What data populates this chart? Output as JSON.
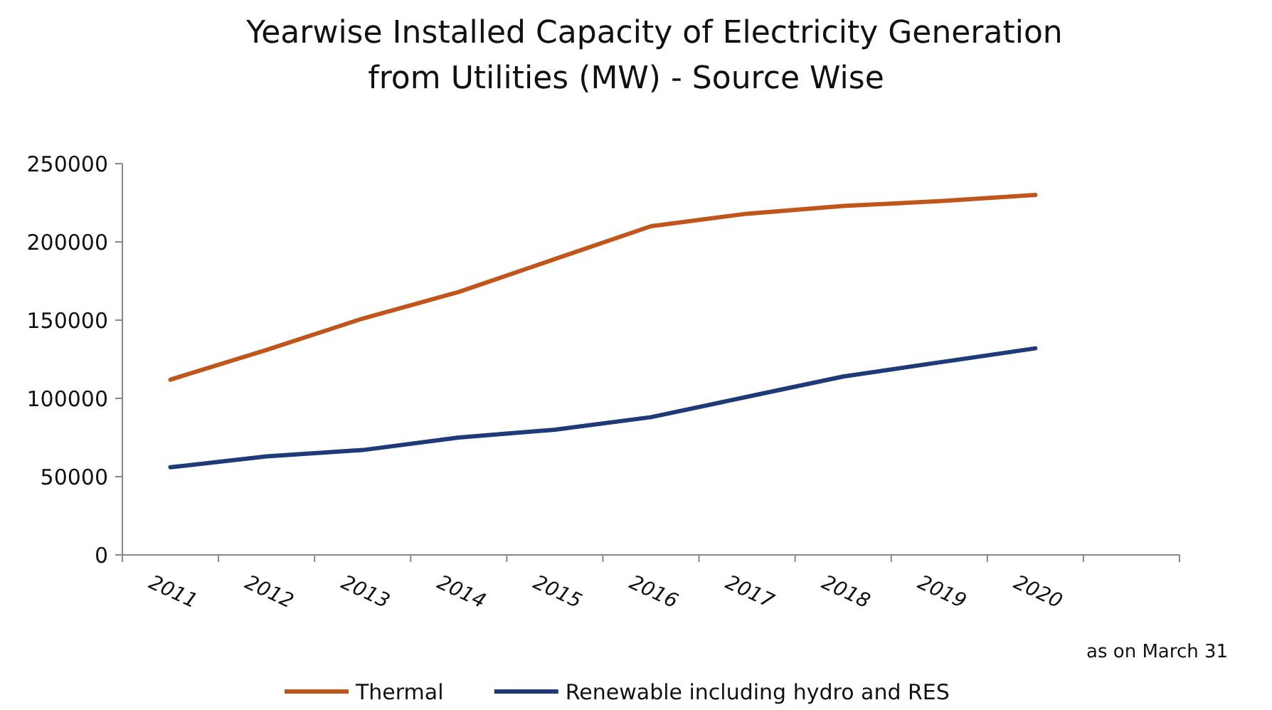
{
  "chart_data": {
    "type": "line",
    "title": "Yearwise Installed Capacity of Electricity Generation\nfrom Utilities (MW) - Source Wise",
    "categories": [
      "2011",
      "2012",
      "2013",
      "2014",
      "2015",
      "2016",
      "2017",
      "2018",
      "2019",
      "2020",
      null
    ],
    "series": [
      {
        "name": "Thermal",
        "color": "#c0561c",
        "values": [
          112000,
          131000,
          151000,
          168000,
          189000,
          210000,
          218000,
          223000,
          226000,
          230000,
          null
        ]
      },
      {
        "name": "Renewable including hydro and RES",
        "color": "#1f3a78",
        "values": [
          56000,
          63000,
          67000,
          75000,
          80000,
          88000,
          101000,
          114000,
          123000,
          132000,
          null
        ]
      }
    ],
    "ylim": [
      0,
      250000
    ],
    "yticks": [
      0,
      50000,
      100000,
      150000,
      200000,
      250000
    ],
    "grid": false,
    "legend": "bottom",
    "marker": "none",
    "line_style": "solid",
    "annotations": [
      "as on March 31"
    ]
  }
}
